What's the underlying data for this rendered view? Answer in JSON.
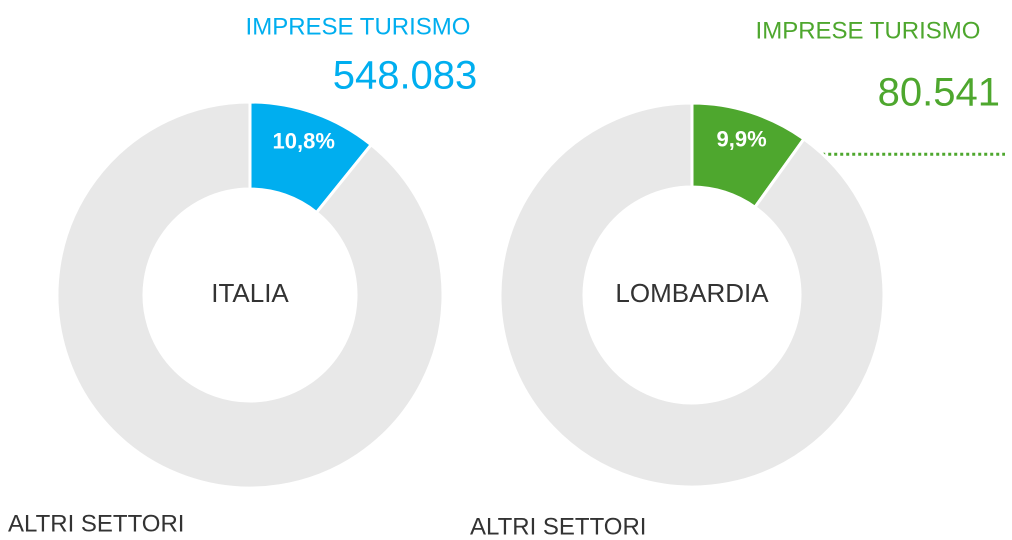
{
  "chart_data": [
    {
      "type": "donut",
      "title": "IMPRESE TURISMO",
      "annotation": "548.083",
      "center_label": "ITALIA",
      "categories": [
        "IMPRESE TURISMO",
        "ALTRI SETTORI"
      ],
      "values": [
        10.8,
        89.2
      ],
      "value_labels": [
        "10,8%",
        null
      ],
      "colors": [
        "#00aeef",
        "#e8e8e8"
      ]
    },
    {
      "type": "donut",
      "title": "IMPRESE TURISMO",
      "annotation": "80.541",
      "center_label": "LOMBARDIA",
      "categories": [
        "IMPRESE TURISMO",
        "ALTRI SETTORI"
      ],
      "values": [
        9.9,
        90.1
      ],
      "value_labels": [
        "9,9%",
        null
      ],
      "colors": [
        "#4ea72e",
        "#e8e8e8"
      ]
    }
  ]
}
